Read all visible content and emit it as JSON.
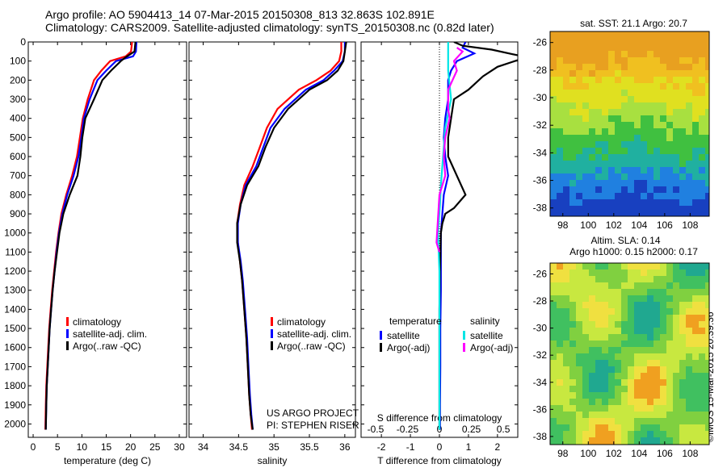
{
  "header": {
    "line1": "Argo profile: AO 5904413_14 07-Mar-2015 20150308_813 32.863S 102.891E",
    "line2": "Climatology: CARS2009. Satellite-adjusted climatology: synTS_20150308.nc (0.82d later)"
  },
  "stamp": "©IMOS 15-Mar-2015 20:39:36",
  "colors": {
    "climatology": "#ff0000",
    "satellite": "#0000ff",
    "argo": "#000000",
    "sal_satellite": "#00e5e5",
    "sal_argo": "#ff00ff"
  },
  "depth_ticks": [
    0,
    100,
    200,
    300,
    400,
    500,
    600,
    700,
    800,
    900,
    1000,
    1100,
    1200,
    1300,
    1400,
    1500,
    1600,
    1700,
    1800,
    1900,
    2000
  ],
  "chart_data": [
    {
      "type": "line",
      "xlabel": "temperature (deg C)",
      "ylabel": "",
      "xlim": [
        -1,
        31.5
      ],
      "ylim": [
        2070,
        0
      ],
      "xticks": [
        0,
        5,
        10,
        15,
        20,
        25,
        30
      ],
      "legend": [
        "climatology",
        "satellite-adj. clim.",
        "Argo(..raw -QC)"
      ],
      "series": [
        {
          "name": "climatology",
          "x": [
            20.3,
            20.1,
            19.0,
            15.8,
            14.0,
            12.5,
            11.2,
            10.2,
            9.6,
            9.0,
            8.0,
            6.8,
            5.8,
            5.2,
            4.7,
            4.3,
            3.9,
            3.6,
            3.3,
            3.1,
            2.9,
            2.7,
            2.6,
            2.5
          ],
          "y": [
            0,
            50,
            75,
            100,
            150,
            200,
            300,
            400,
            500,
            600,
            700,
            800,
            900,
            1000,
            1100,
            1200,
            1300,
            1400,
            1500,
            1600,
            1700,
            1800,
            1900,
            2030
          ]
        },
        {
          "name": "satellite-adj. clim.",
          "x": [
            21.2,
            21.1,
            20.5,
            17.0,
            15.0,
            13.2,
            11.6,
            10.4,
            9.9,
            9.3,
            8.3,
            7.0,
            6.0,
            5.3,
            4.8,
            4.4,
            4.0,
            3.7,
            3.4,
            3.2,
            3.0,
            2.8,
            2.7,
            2.6
          ],
          "y": [
            0,
            50,
            75,
            100,
            150,
            200,
            300,
            400,
            500,
            600,
            700,
            800,
            900,
            1000,
            1100,
            1200,
            1300,
            1400,
            1500,
            1600,
            1700,
            1800,
            1900,
            2030
          ]
        },
        {
          "name": "Argo(..raw -QC)",
          "x": [
            21.0,
            20.8,
            19.0,
            18.0,
            16.0,
            14.2,
            12.5,
            10.7,
            10.1,
            9.7,
            9.1,
            7.5,
            6.2,
            5.4,
            4.9,
            4.4,
            4.0,
            3.7,
            3.4,
            3.2,
            3.0,
            2.8,
            2.7,
            2.6
          ],
          "y": [
            0,
            50,
            80,
            100,
            150,
            200,
            300,
            400,
            500,
            600,
            700,
            800,
            900,
            1000,
            1100,
            1200,
            1300,
            1400,
            1500,
            1600,
            1700,
            1800,
            1900,
            2030
          ]
        }
      ]
    },
    {
      "type": "line",
      "xlabel": "salinity",
      "ylabel": "",
      "xlim": [
        33.8,
        36.15
      ],
      "ylim": [
        2070,
        0
      ],
      "xticks": [
        34,
        34.5,
        35,
        35.5,
        36
      ],
      "legend": [
        "climatology",
        "satellite-adj. clim.",
        "Argo(..raw -QC)"
      ],
      "annotation": [
        "US ARGO PROJECT",
        "PI: STEPHEN RISER"
      ],
      "series": [
        {
          "name": "climatology",
          "x": [
            35.95,
            35.95,
            35.92,
            35.8,
            35.6,
            35.35,
            35.05,
            34.9,
            34.8,
            34.7,
            34.58,
            34.52,
            34.48,
            34.49,
            34.52,
            34.55,
            34.58,
            34.61,
            34.63,
            34.65,
            34.67,
            34.69
          ],
          "y": [
            0,
            50,
            100,
            150,
            200,
            250,
            350,
            450,
            550,
            650,
            750,
            850,
            950,
            1050,
            1150,
            1250,
            1400,
            1550,
            1700,
            1850,
            1950,
            2030
          ]
        },
        {
          "name": "satellite-adj. clim.",
          "x": [
            36.0,
            36.0,
            35.97,
            35.85,
            35.7,
            35.45,
            35.15,
            34.95,
            34.85,
            34.75,
            34.6,
            34.53,
            34.49,
            34.49,
            34.53,
            34.56,
            34.59,
            34.62,
            34.64,
            34.66,
            34.68,
            34.7
          ],
          "y": [
            0,
            50,
            100,
            150,
            200,
            250,
            350,
            450,
            550,
            650,
            750,
            850,
            950,
            1050,
            1150,
            1250,
            1400,
            1550,
            1700,
            1850,
            1950,
            2030
          ]
        },
        {
          "name": "Argo(..raw -QC)",
          "x": [
            36.02,
            36.0,
            35.98,
            35.9,
            35.75,
            35.5,
            35.2,
            35.0,
            34.88,
            34.78,
            34.62,
            34.53,
            34.48,
            34.48,
            34.52,
            34.55,
            34.58,
            34.61,
            34.63,
            34.65,
            34.67,
            34.7
          ],
          "y": [
            0,
            50,
            100,
            150,
            200,
            250,
            350,
            450,
            550,
            650,
            750,
            850,
            950,
            1050,
            1150,
            1250,
            1400,
            1550,
            1700,
            1850,
            1950,
            2030
          ]
        }
      ]
    },
    {
      "type": "line",
      "xlabel": "T difference from climatology",
      "secondary_xlabel": "S difference from climatology",
      "xlim": [
        -2.7,
        2.7
      ],
      "ylim": [
        2070,
        0
      ],
      "xticks": [
        -2,
        -1,
        0,
        1,
        2
      ],
      "secondary_xticks": [
        "-0.5",
        "-0.25",
        "0",
        "0.25",
        "0.5"
      ],
      "legend_headers": [
        "temperature",
        "salinity"
      ],
      "legend": [
        "satellite",
        "Argo(-adj)",
        "satellite",
        "Argo(-adj)"
      ],
      "series": [
        {
          "name": "satellite",
          "x": [
            0.9,
            0.8,
            1.2,
            0.6,
            0.4,
            0.3,
            0.3,
            0.2,
            0.15,
            0.2,
            0.25,
            0.3,
            0.15,
            0.1,
            0.05,
            0.05,
            0.05,
            0.03,
            0.03,
            0.02,
            0.02
          ],
          "y": [
            0,
            30,
            60,
            100,
            150,
            200,
            300,
            400,
            500,
            600,
            650,
            700,
            800,
            900,
            1000,
            1100,
            1300,
            1500,
            1700,
            1900,
            2030
          ]
        },
        {
          "name": "Argo(-adj)",
          "x": [
            0.5,
            0.8,
            1.8,
            3.0,
            2.0,
            1.5,
            1.0,
            0.5,
            0.4,
            0.3,
            0.3,
            0.9,
            0.5,
            0.2,
            0.1,
            0.05,
            0.02,
            0.0,
            0.0,
            0.0,
            0.0
          ],
          "y": [
            0,
            20,
            40,
            80,
            130,
            180,
            250,
            300,
            400,
            500,
            600,
            800,
            870,
            900,
            950,
            1000,
            1200,
            1400,
            1600,
            1800,
            2030
          ]
        },
        {
          "name": "satellite",
          "x": [
            0.3,
            0.3,
            0.3,
            0.4,
            0.2,
            0.15,
            0.1,
            0.05,
            0.02,
            -0.05,
            0.0,
            0.0,
            0.0,
            0.0,
            0.0
          ],
          "y": [
            0,
            50,
            150,
            300,
            450,
            550,
            650,
            750,
            850,
            1000,
            1200,
            1400,
            1600,
            1800,
            2030
          ]
        },
        {
          "name": "Argo(-adj)",
          "x": [
            0.6,
            0.8,
            0.5,
            0.6,
            0.3,
            0.3,
            0.35,
            0.2,
            0.15,
            0.2,
            0.0,
            -0.1,
            0.0
          ],
          "y": [
            30,
            50,
            100,
            150,
            250,
            350,
            400,
            500,
            600,
            700,
            800,
            1050,
            1100
          ]
        }
      ]
    },
    {
      "type": "heatmap",
      "title": "sat. SST: 21.1  Argo: 20.7",
      "xticks": [
        98,
        100,
        102,
        104,
        106,
        108
      ],
      "yticks": [
        -26,
        -28,
        -30,
        -32,
        -34,
        -36,
        -38
      ],
      "xlim": [
        97,
        109.5
      ],
      "ylim": [
        -38.6,
        -25.2
      ]
    },
    {
      "type": "heatmap",
      "title_lines": [
        "Altim. SLA: 0.14",
        "Argo h1000: 0.15 h2000: 0.17"
      ],
      "xticks": [
        98,
        100,
        102,
        104,
        106,
        108
      ],
      "yticks": [
        -26,
        -28,
        -30,
        -32,
        -34,
        -36,
        -38
      ],
      "xlim": [
        97,
        109.5
      ],
      "ylim": [
        -38.6,
        -25.2
      ]
    }
  ]
}
